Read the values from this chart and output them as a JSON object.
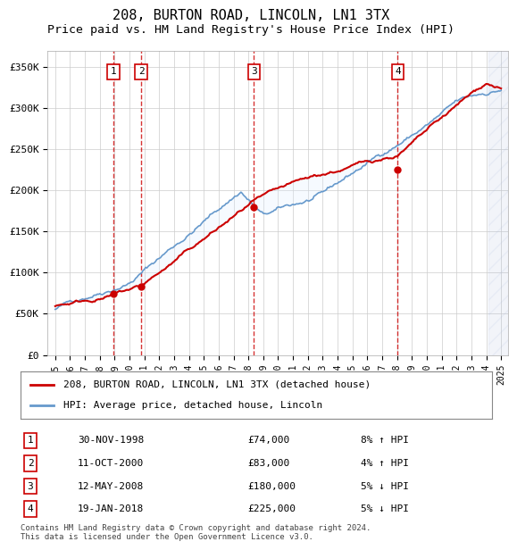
{
  "title": "208, BURTON ROAD, LINCOLN, LN1 3TX",
  "subtitle": "Price paid vs. HM Land Registry's House Price Index (HPI)",
  "footer": "Contains HM Land Registry data © Crown copyright and database right 2024.\nThis data is licensed under the Open Government Licence v3.0.",
  "legend_line1": "208, BURTON ROAD, LINCOLN, LN1 3TX (detached house)",
  "legend_line2": "HPI: Average price, detached house, Lincoln",
  "transactions": [
    {
      "label": "1",
      "date": "30-NOV-1998",
      "price": 74000,
      "hpi_note": "8% ↑ HPI",
      "year": 1998.92
    },
    {
      "label": "2",
      "date": "11-OCT-2000",
      "price": 83000,
      "hpi_note": "4% ↑ HPI",
      "year": 2000.78
    },
    {
      "label": "3",
      "date": "12-MAY-2008",
      "price": 180000,
      "hpi_note": "5% ↓ HPI",
      "year": 2008.37
    },
    {
      "label": "4",
      "date": "19-JAN-2018",
      "price": 225000,
      "hpi_note": "5% ↓ HPI",
      "year": 2018.05
    }
  ],
  "ylim": [
    0,
    370000
  ],
  "xlim": [
    1994.5,
    2025.5
  ],
  "yticks": [
    0,
    50000,
    100000,
    150000,
    200000,
    250000,
    300000,
    350000
  ],
  "ytick_labels": [
    "£0",
    "£50K",
    "£100K",
    "£150K",
    "£200K",
    "£250K",
    "£300K",
    "£350K"
  ],
  "xticks": [
    1995,
    1996,
    1997,
    1998,
    1999,
    2000,
    2001,
    2002,
    2003,
    2004,
    2005,
    2006,
    2007,
    2008,
    2009,
    2010,
    2011,
    2012,
    2013,
    2014,
    2015,
    2016,
    2017,
    2018,
    2019,
    2020,
    2021,
    2022,
    2023,
    2024,
    2025
  ],
  "red_color": "#cc0000",
  "blue_color": "#6699cc",
  "shade_color": "#ddeeff",
  "hatch_color": "#aabbcc",
  "grid_color": "#cccccc",
  "background_color": "#ffffff",
  "title_fontsize": 11,
  "subtitle_fontsize": 9.5
}
